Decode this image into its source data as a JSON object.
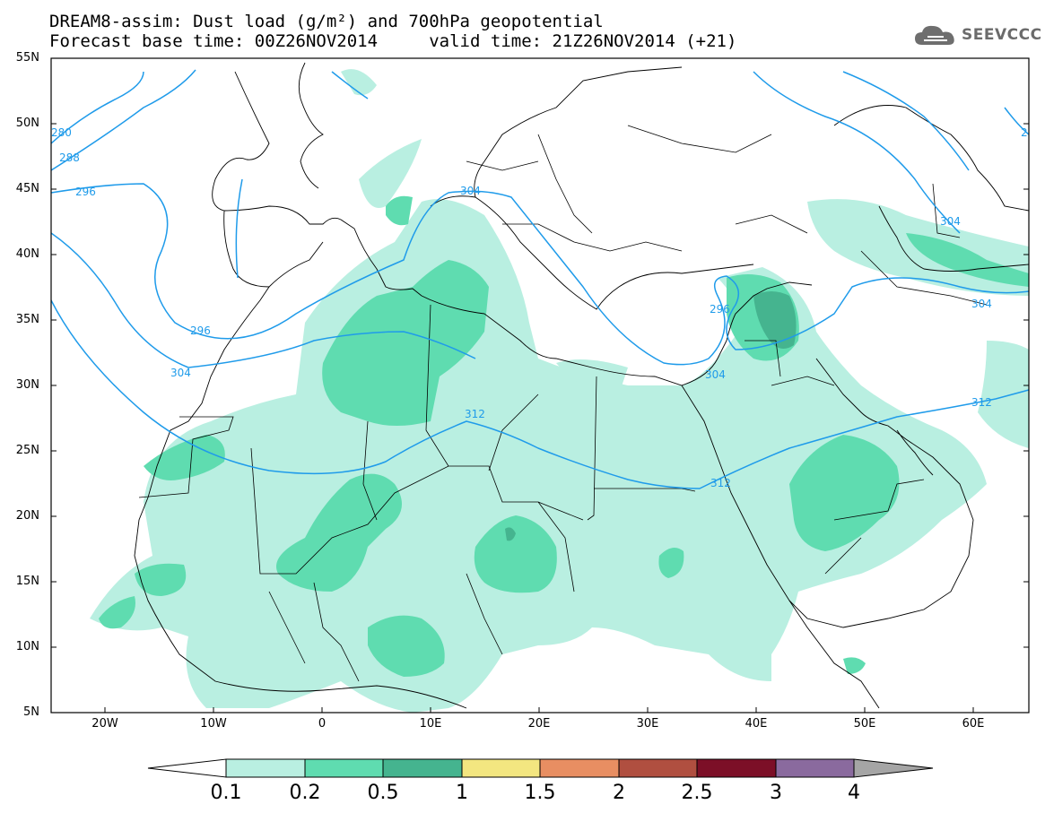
{
  "title": {
    "line1": "DREAM8-assim: Dust load (g/m²) and 700hPa geopotential",
    "line2": "Forecast base time: 00Z26NOV2014     valid time: 21Z26NOV2014 (+21)"
  },
  "logo": {
    "text": "SEEVCCC",
    "icon": "cloud-icon"
  },
  "map": {
    "lat_labels": [
      "55N",
      "50N",
      "45N",
      "40N",
      "35N",
      "30N",
      "25N",
      "20N",
      "15N",
      "10N",
      "5N"
    ],
    "lon_labels": [
      "20W",
      "10W",
      "0",
      "10E",
      "20E",
      "30E",
      "40E",
      "50E",
      "60E"
    ],
    "contour_labels": [
      "280",
      "288",
      "296",
      "296",
      "304",
      "304",
      "312",
      "312",
      "312",
      "304",
      "296",
      "304",
      "304",
      "2"
    ],
    "contour_color": "#1f9bea",
    "dust_colors": {
      "light": "#b9efe1",
      "medium": "#5fdcb0",
      "dark": "#45b48f"
    }
  },
  "colorbar": {
    "labels": [
      "0.1",
      "0.2",
      "0.5",
      "1",
      "1.5",
      "2",
      "2.5",
      "3",
      "4"
    ],
    "colors": [
      "#ffffff",
      "#b9efe1",
      "#5fdcb0",
      "#45b48f",
      "#f3e680",
      "#e88e62",
      "#b04f40",
      "#7c0f27",
      "#8a6a9e",
      "#a5a5a5"
    ]
  }
}
